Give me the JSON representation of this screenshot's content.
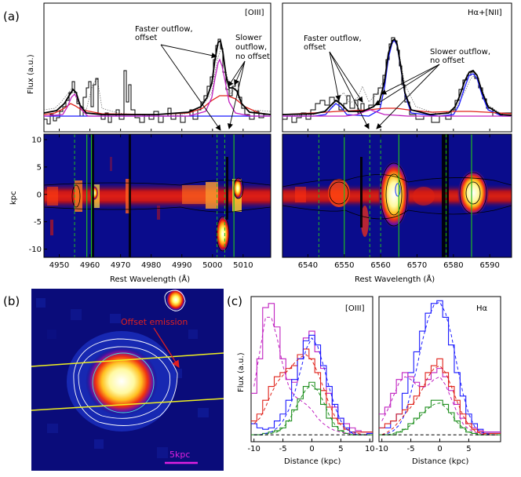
{
  "panel_labels": {
    "a": "(a)",
    "b": "(b)",
    "c": "(c)"
  },
  "colors": {
    "spec_black": "#000000",
    "fit_blue": "#1a1aff",
    "fit_red": "#e0221a",
    "fit_magenta": "#c020c0",
    "fit_green": "#1f8f1f",
    "guide_green": "#22bb22",
    "slit_yellow": "#f0f020",
    "scale_magenta": "#e020e0",
    "annot_red": "#e02020",
    "contour_white": "#ffffff",
    "map_bg": "#0a0c8c"
  },
  "a_left": {
    "label": "[OIII]",
    "ylabel": "Flux (a.u.)",
    "xlabel": "Rest Wavelength (Å)",
    "map_ylabel": "kpc",
    "xticks": [
      "4950",
      "4960",
      "4970",
      "4980",
      "4990",
      "5000",
      "5010"
    ],
    "xtick_values": [
      4950,
      4960,
      4970,
      4980,
      4990,
      5000,
      5010
    ],
    "xlim": [
      4945,
      5019
    ],
    "yticks": [
      "10",
      "5",
      "0",
      "-5",
      "-10"
    ],
    "ytick_values": [
      10,
      5,
      0,
      -5,
      -10
    ],
    "ylim": [
      -11.5,
      11
    ],
    "annot_faster_1": "Faster outflow,",
    "annot_faster_2": "offset",
    "annot_slower_1": "Slower",
    "annot_slower_2": "outflow,",
    "annot_slower_3": "no offset",
    "guides_solid": [
      4959,
      4960.5,
      5007
    ],
    "guides_dashed": [
      4955,
      5001.5,
      5004
    ]
  },
  "a_right": {
    "label": "Hα+[NII]",
    "xlabel": "Rest Wavelength (Å)",
    "xticks": [
      "6540",
      "6550",
      "6560",
      "6570",
      "6580",
      "6590"
    ],
    "xtick_values": [
      6540,
      6550,
      6560,
      6570,
      6580,
      6590
    ],
    "xlim": [
      6533,
      6596
    ],
    "annot_faster_1": "Faster outflow,",
    "annot_faster_2": "offset",
    "annot_slower_1": "Slower outflow,",
    "annot_slower_2": "no offset",
    "guides_solid": [
      6550,
      6565,
      6585
    ],
    "guides_dashed": [
      6543,
      6557,
      6560,
      6578
    ]
  },
  "b_panel": {
    "offset_label": "Offset emission",
    "scale_label": "5kpc"
  },
  "chart_data": [
    {
      "type": "line",
      "title": "[OIII]",
      "xlabel": "Distance (kpc)",
      "ylabel": "Flux (a.u.)",
      "xlim": [
        -10.5,
        10.5
      ],
      "xticks": [
        "-10",
        "-5",
        "0",
        "5",
        "10"
      ],
      "xtick_values": [
        -10,
        -5,
        0,
        5,
        10
      ],
      "ylim": [
        -0.05,
        1.0
      ],
      "x": [
        -10,
        -9,
        -8,
        -7,
        -6,
        -5,
        -4,
        -3,
        -2,
        -1,
        0,
        1,
        2,
        3,
        4,
        5,
        6,
        7,
        8,
        9,
        10
      ],
      "series": [
        {
          "name": "magenta",
          "style": "step",
          "values": [
            0.3,
            0.55,
            0.92,
            0.95,
            0.78,
            0.55,
            0.4,
            0.38,
            0.55,
            0.7,
            0.75,
            0.6,
            0.48,
            0.3,
            0.2,
            0.12,
            0.08,
            0.05,
            0.03,
            0.02,
            0.02
          ]
        },
        {
          "name": "red",
          "style": "step",
          "values": [
            0.1,
            0.15,
            0.25,
            0.35,
            0.42,
            0.45,
            0.48,
            0.5,
            0.58,
            0.62,
            0.55,
            0.45,
            0.32,
            0.2,
            0.12,
            0.08,
            0.04,
            0.02,
            0.02,
            0.02,
            0.02
          ]
        },
        {
          "name": "blue",
          "style": "step",
          "values": [
            0.08,
            0.05,
            0.04,
            0.05,
            0.1,
            0.15,
            0.25,
            0.4,
            0.55,
            0.68,
            0.72,
            0.65,
            0.5,
            0.35,
            0.22,
            0.12,
            0.05,
            0.02,
            0.0,
            0.0,
            0.01
          ]
        },
        {
          "name": "green",
          "style": "step",
          "values": [
            0.0,
            0.0,
            0.01,
            0.02,
            0.03,
            0.05,
            0.1,
            0.18,
            0.26,
            0.35,
            0.38,
            0.33,
            0.22,
            0.12,
            0.06,
            0.03,
            0.01,
            0.0,
            0.0,
            0.0,
            0.0
          ]
        },
        {
          "name": "magenta_fit",
          "style": "dashed",
          "values": [
            0.35,
            0.6,
            0.85,
            0.85,
            0.7,
            0.5,
            0.35,
            0.28,
            0.25,
            0.22,
            0.18,
            0.12,
            0.08,
            0.05,
            0.03,
            0.02,
            0.01,
            0.01,
            0.0,
            0.0,
            0.0
          ]
        },
        {
          "name": "red_fit",
          "style": "dashed",
          "values": [
            0.08,
            0.12,
            0.2,
            0.3,
            0.38,
            0.43,
            0.47,
            0.52,
            0.56,
            0.58,
            0.54,
            0.45,
            0.34,
            0.22,
            0.13,
            0.07,
            0.04,
            0.02,
            0.01,
            0.0,
            0.0
          ]
        },
        {
          "name": "blue_fit",
          "style": "dashed",
          "values": [
            0.0,
            0.0,
            0.01,
            0.02,
            0.05,
            0.1,
            0.18,
            0.3,
            0.46,
            0.62,
            0.7,
            0.64,
            0.5,
            0.34,
            0.2,
            0.1,
            0.04,
            0.01,
            0.0,
            0.0,
            0.0
          ]
        },
        {
          "name": "green_fit",
          "style": "dashed",
          "values": [
            0.0,
            0.0,
            0.0,
            0.01,
            0.02,
            0.05,
            0.1,
            0.18,
            0.26,
            0.33,
            0.36,
            0.32,
            0.24,
            0.14,
            0.07,
            0.03,
            0.01,
            0.0,
            0.0,
            0.0,
            0.0
          ]
        },
        {
          "name": "baseline",
          "style": "dashed",
          "values": [
            0,
            0,
            0,
            0,
            0,
            0,
            0,
            0,
            0,
            0,
            0,
            0,
            0,
            0,
            0,
            0,
            0,
            0,
            0,
            0,
            0
          ]
        }
      ]
    },
    {
      "type": "line",
      "title": "Hα",
      "xlabel": "Distance (kpc)",
      "ylabel": "",
      "xlim": [
        -10.5,
        10.5
      ],
      "xticks": [
        "-10",
        "-5",
        "0",
        "5"
      ],
      "xtick_values": [
        -10,
        -5,
        0,
        5
      ],
      "ylim": [
        -0.05,
        1.0
      ],
      "x": [
        -10,
        -9,
        -8,
        -7,
        -6,
        -5,
        -4,
        -3,
        -2,
        -1,
        0,
        1,
        2,
        3,
        4,
        5,
        6,
        7,
        8,
        9,
        10
      ],
      "series": [
        {
          "name": "blue",
          "style": "step",
          "values": [
            0.05,
            0.05,
            0.1,
            0.15,
            0.3,
            0.45,
            0.6,
            0.75,
            0.88,
            0.95,
            0.97,
            0.85,
            0.65,
            0.45,
            0.28,
            0.15,
            0.08,
            0.04,
            0.02,
            0.02,
            0.02
          ]
        },
        {
          "name": "magenta",
          "style": "step",
          "values": [
            0.15,
            0.2,
            0.3,
            0.4,
            0.45,
            0.42,
            0.38,
            0.35,
            0.4,
            0.45,
            0.48,
            0.42,
            0.32,
            0.22,
            0.12,
            0.08,
            0.05,
            0.03,
            0.02,
            0.02,
            0.02
          ]
        },
        {
          "name": "red",
          "style": "step",
          "values": [
            0.05,
            0.08,
            0.1,
            0.15,
            0.18,
            0.22,
            0.28,
            0.35,
            0.45,
            0.5,
            0.55,
            0.45,
            0.35,
            0.25,
            0.15,
            0.08,
            0.04,
            0.02,
            0.01,
            0.01,
            0.01
          ]
        },
        {
          "name": "green",
          "style": "step",
          "values": [
            0.0,
            0.0,
            0.0,
            0.02,
            0.04,
            0.08,
            0.12,
            0.16,
            0.2,
            0.25,
            0.25,
            0.22,
            0.16,
            0.1,
            0.05,
            0.02,
            0.01,
            0.0,
            0.0,
            0.0,
            0.0
          ]
        },
        {
          "name": "blue_fit",
          "style": "dashed",
          "values": [
            0.0,
            0.01,
            0.03,
            0.07,
            0.15,
            0.3,
            0.48,
            0.68,
            0.84,
            0.94,
            0.96,
            0.88,
            0.72,
            0.5,
            0.3,
            0.15,
            0.06,
            0.02,
            0.01,
            0.0,
            0.0
          ]
        },
        {
          "name": "magenta_fit",
          "style": "dashed",
          "values": [
            0.1,
            0.18,
            0.28,
            0.38,
            0.42,
            0.4,
            0.36,
            0.34,
            0.36,
            0.4,
            0.42,
            0.36,
            0.26,
            0.16,
            0.08,
            0.04,
            0.02,
            0.01,
            0.0,
            0.0,
            0.0
          ]
        },
        {
          "name": "red_fit",
          "style": "dashed",
          "values": [
            0.0,
            0.02,
            0.05,
            0.1,
            0.15,
            0.2,
            0.26,
            0.33,
            0.42,
            0.48,
            0.5,
            0.45,
            0.35,
            0.24,
            0.14,
            0.07,
            0.03,
            0.01,
            0.0,
            0.0,
            0.0
          ]
        },
        {
          "name": "green_fit",
          "style": "dashed",
          "values": [
            0.0,
            0.0,
            0.01,
            0.02,
            0.04,
            0.07,
            0.11,
            0.15,
            0.19,
            0.22,
            0.23,
            0.2,
            0.15,
            0.09,
            0.05,
            0.02,
            0.01,
            0.0,
            0.0,
            0.0,
            0.0
          ]
        },
        {
          "name": "baseline",
          "style": "dashed",
          "values": [
            0,
            0,
            0,
            0,
            0,
            0,
            0,
            0,
            0,
            0,
            0,
            0,
            0,
            0,
            0,
            0,
            0,
            0,
            0,
            0,
            0
          ]
        }
      ]
    }
  ]
}
